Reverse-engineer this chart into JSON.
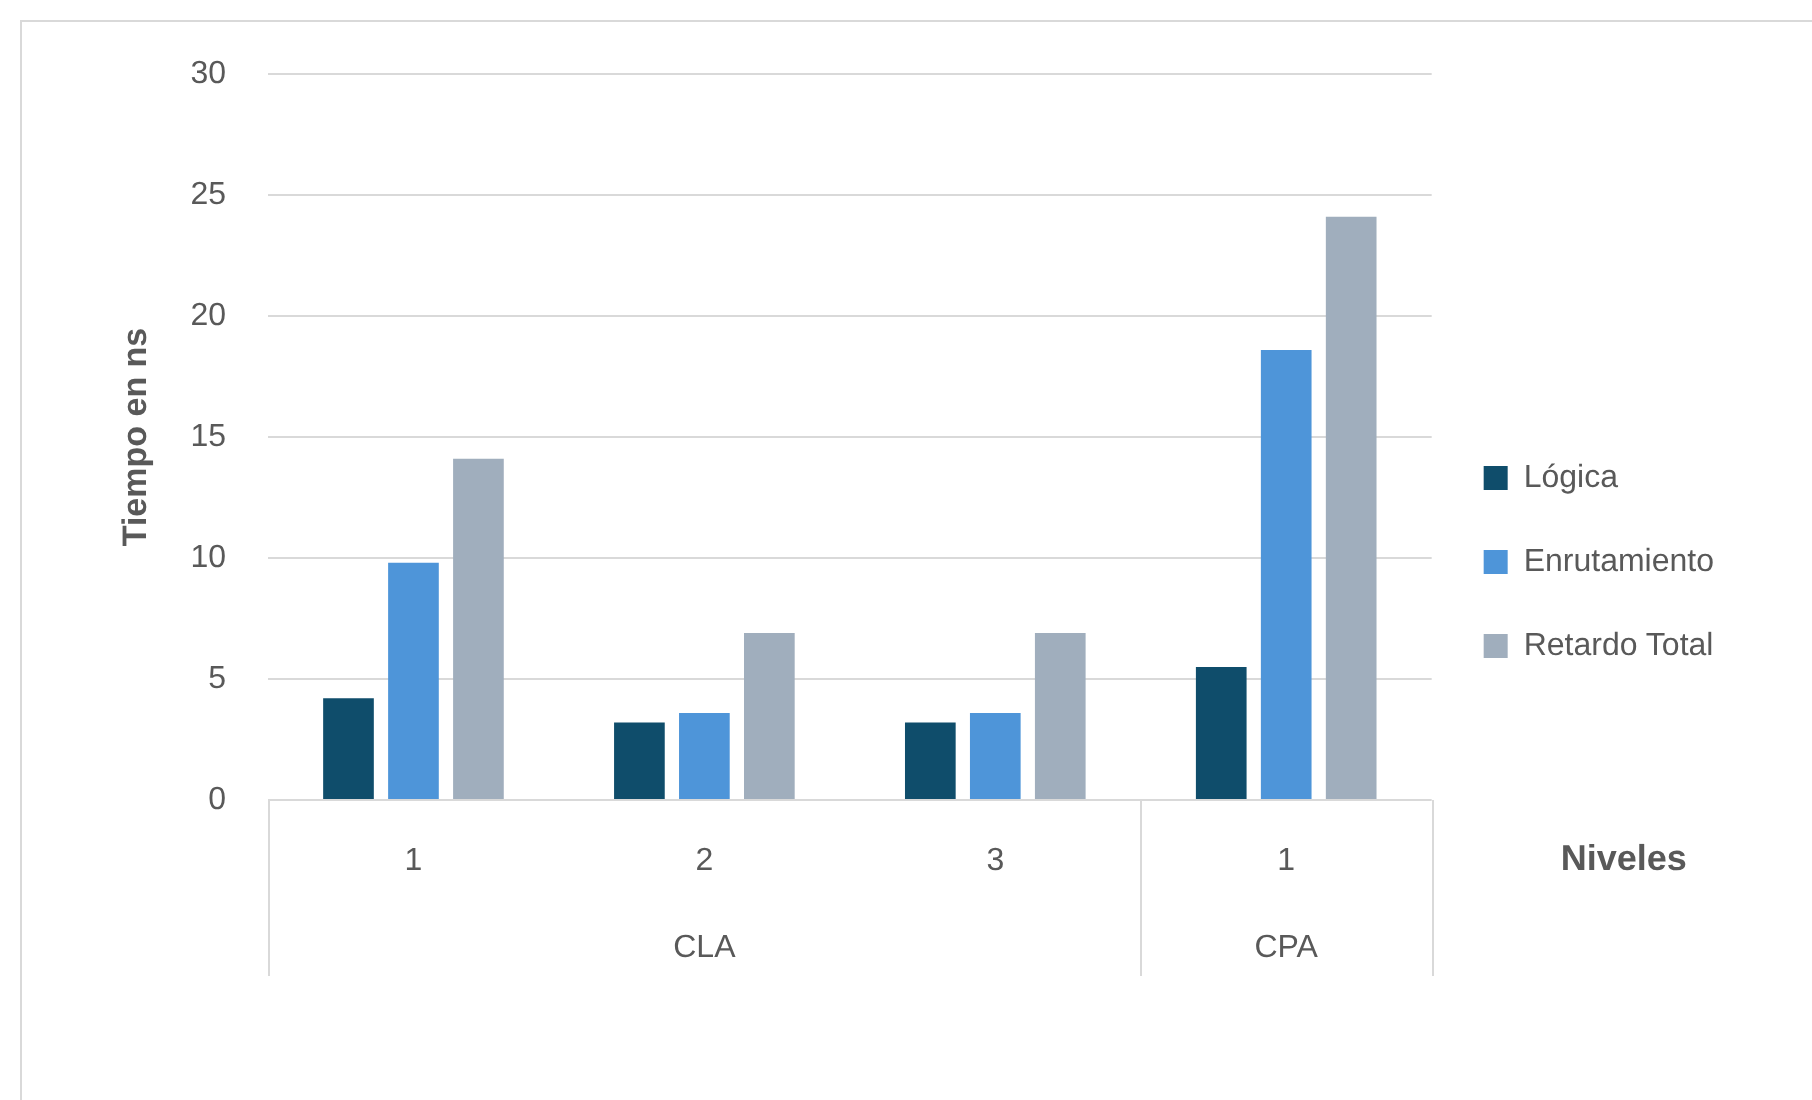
{
  "chart_data": {
    "type": "bar",
    "categories": [
      "1",
      "2",
      "3",
      "1"
    ],
    "series": [
      {
        "name": "Lógica",
        "color": "#0f4d6b",
        "values": [
          4.2,
          3.2,
          3.2,
          5.5
        ]
      },
      {
        "name": "Enrutamiento",
        "color": "#4e95d9",
        "values": [
          9.8,
          3.6,
          3.6,
          18.6
        ]
      },
      {
        "name": "Retardo Total",
        "color": "#a0aebd",
        "values": [
          14.1,
          6.9,
          6.9,
          24.1
        ]
      }
    ],
    "xlabel": "Niveles",
    "ylabel": "Tiempo en ns",
    "ylim": [
      0,
      30
    ],
    "yticks": [
      0,
      5,
      10,
      15,
      20,
      25,
      30
    ],
    "grid": "y",
    "legend": "right",
    "annotations": [
      "CLA",
      "CPA"
    ]
  }
}
